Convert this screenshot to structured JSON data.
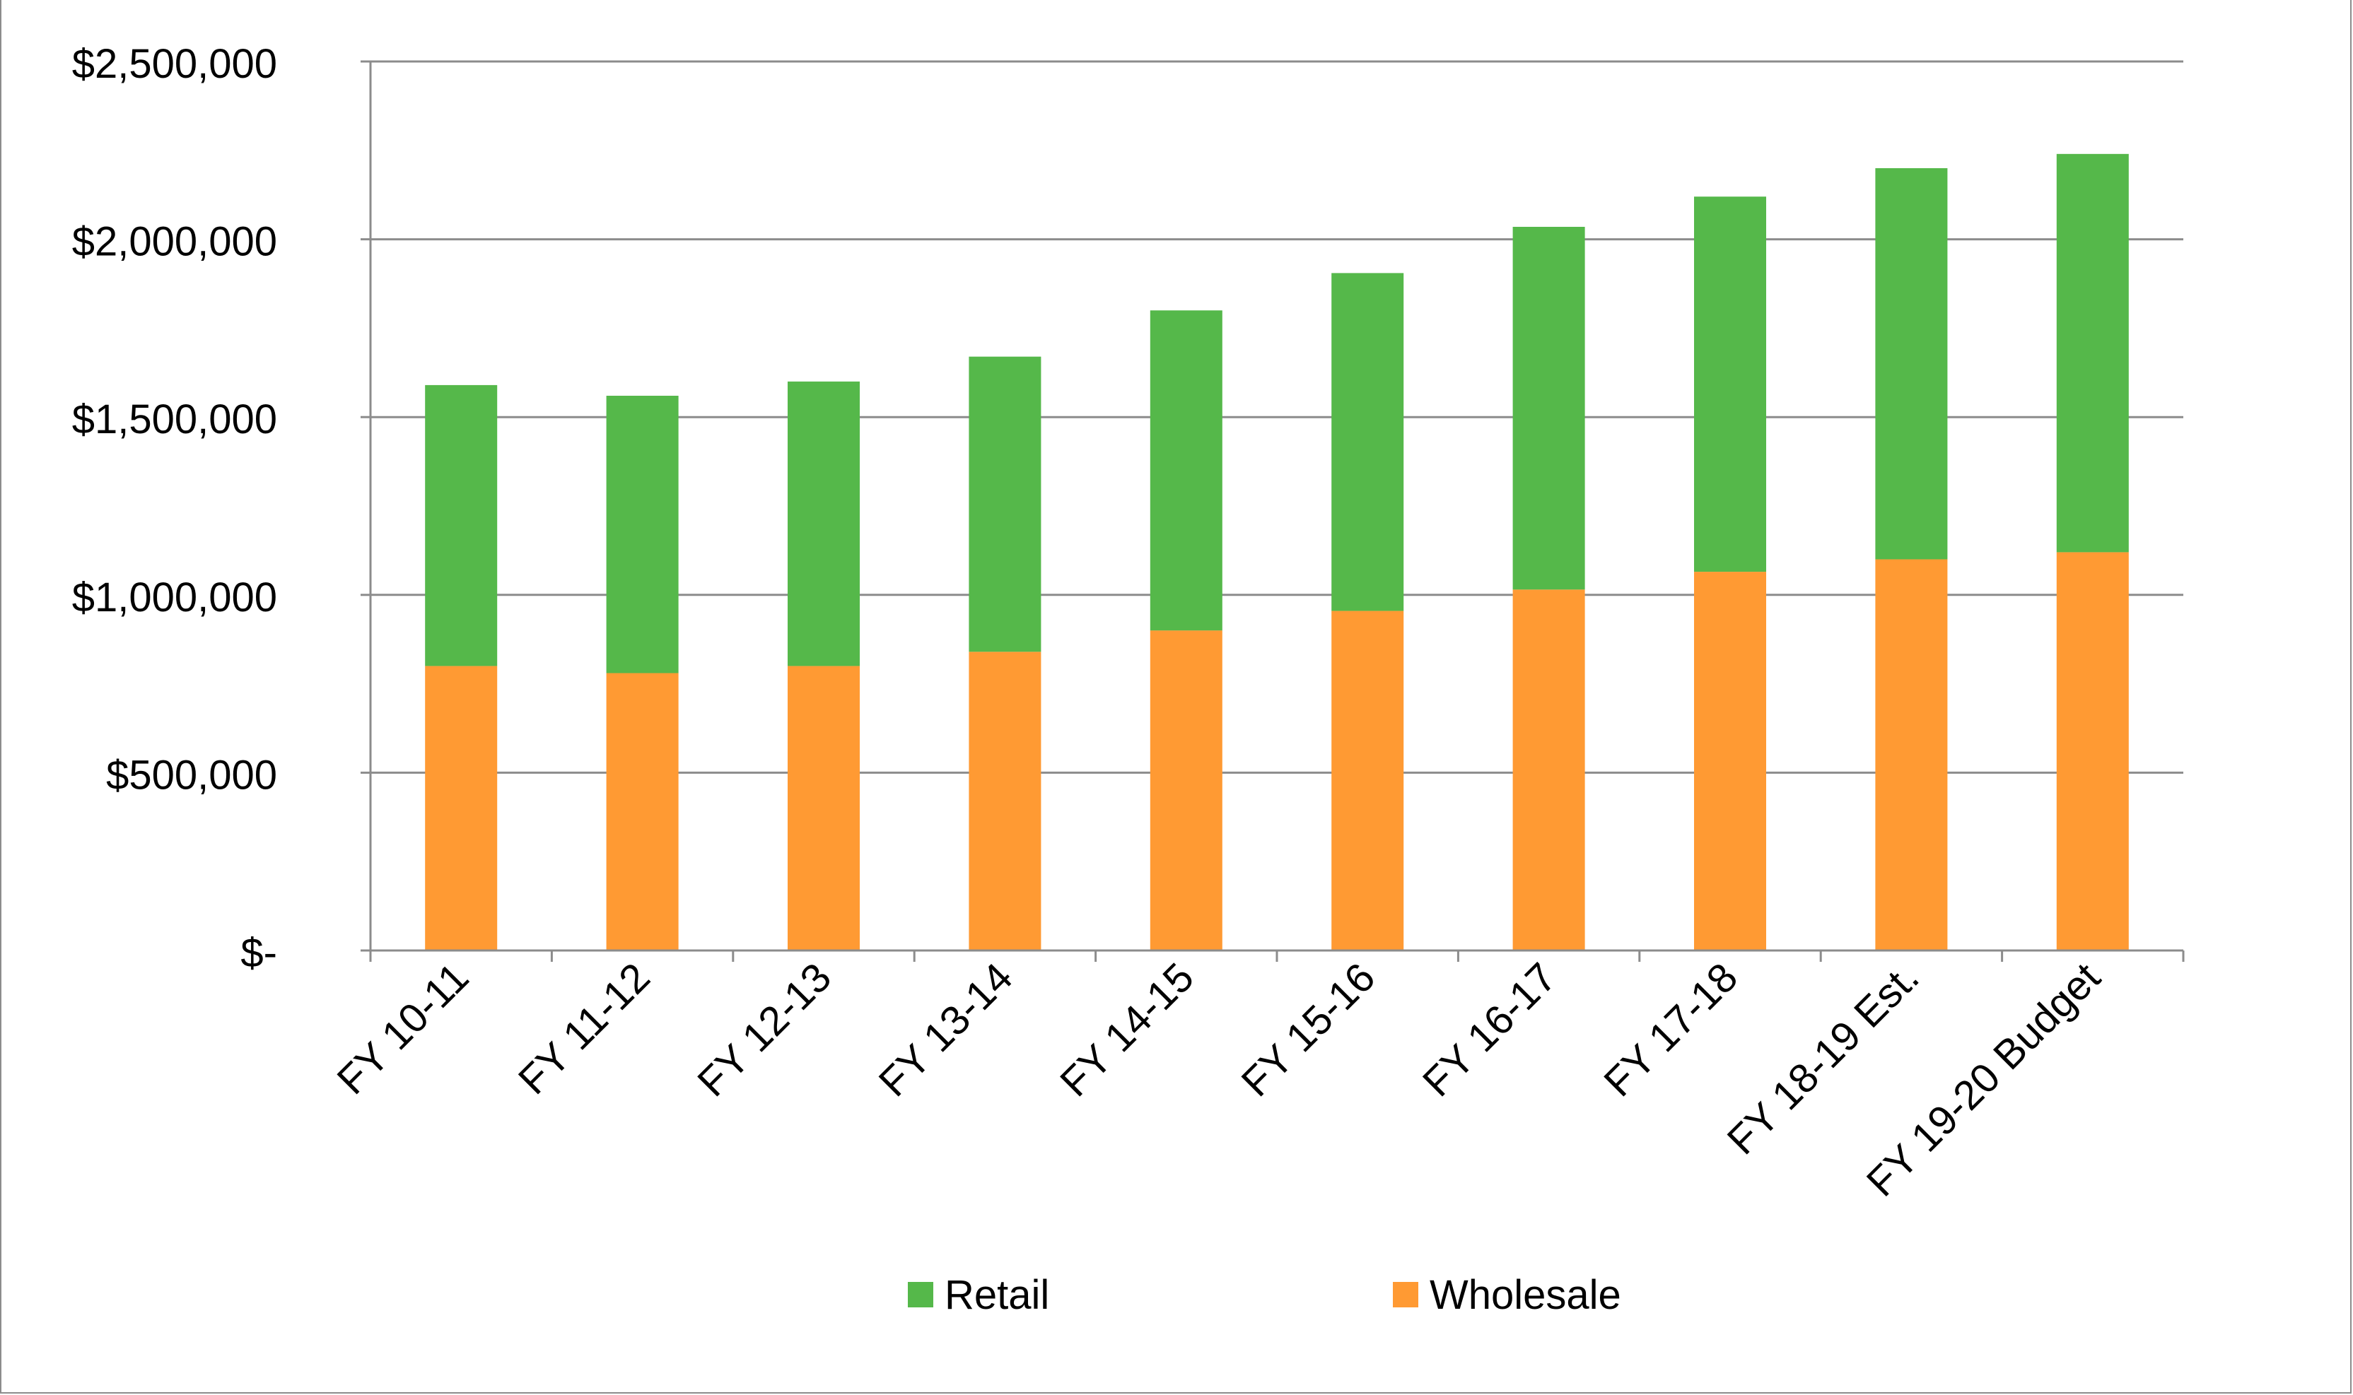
{
  "chart_data": {
    "type": "bar",
    "stacked": true,
    "categories": [
      "FY 10-11",
      "FY 11-12",
      "FY 12-13",
      "FY 13-14",
      "FY 14-15",
      "FY 15-16",
      "FY 16-17",
      "FY 17-18",
      "FY 18-19 Est.",
      "FY 19-20 Budget"
    ],
    "series": [
      {
        "name": "Wholesale",
        "color": "#ff9a33",
        "values": [
          800000,
          780000,
          800000,
          840000,
          900000,
          955000,
          1015000,
          1065000,
          1100000,
          1120000
        ]
      },
      {
        "name": "Retail",
        "color": "#55b84a",
        "values": [
          790000,
          780000,
          800000,
          830000,
          900000,
          950000,
          1020000,
          1055000,
          1100000,
          1120000
        ]
      }
    ],
    "ylim": [
      0,
      2500000
    ],
    "yticks": [
      0,
      500000,
      1000000,
      1500000,
      2000000,
      2500000
    ],
    "ytick_labels": [
      "$-",
      "$500,000",
      "$1,000,000",
      "$1,500,000",
      "$2,000,000",
      "$2,500,000"
    ],
    "title": "",
    "xlabel": "",
    "ylabel": "",
    "grid": true,
    "gridline_color": "#8c8c8c",
    "axis_color": "#8c8c8c",
    "legend": {
      "placement": "bottom",
      "order": [
        "Retail",
        "Wholesale"
      ]
    }
  }
}
